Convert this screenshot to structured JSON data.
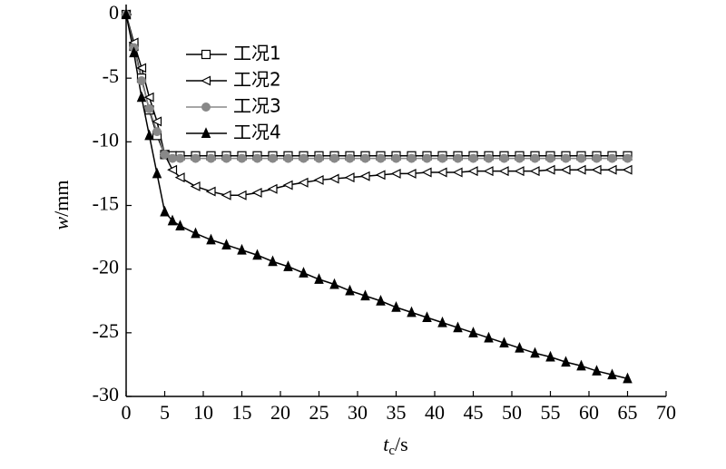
{
  "chart_data": {
    "type": "line",
    "xlabel": {
      "symbol": "t",
      "subscript": "c",
      "unit": "/s"
    },
    "ylabel": {
      "symbol": "w",
      "unit": "/mm"
    },
    "x": [
      0,
      1,
      2,
      3,
      4,
      5,
      6,
      7,
      9,
      11,
      13,
      15,
      17,
      19,
      21,
      23,
      25,
      27,
      29,
      31,
      33,
      35,
      37,
      39,
      41,
      43,
      45,
      47,
      49,
      51,
      53,
      55,
      57,
      59,
      61,
      63,
      65
    ],
    "series": [
      {
        "name": "工况1",
        "color": "#000000",
        "marker": "square",
        "values": [
          0,
          -2.5,
          -5,
          -7.5,
          -9.5,
          -11,
          -11.1,
          -11.1,
          -11.1,
          -11.1,
          -11.1,
          -11.1,
          -11.1,
          -11.1,
          -11.1,
          -11.1,
          -11.1,
          -11.1,
          -11.1,
          -11.1,
          -11.1,
          -11.1,
          -11.1,
          -11.1,
          -11.1,
          -11.1,
          -11.1,
          -11.1,
          -11.1,
          -11.1,
          -11.1,
          -11.1,
          -11.1,
          -11.1,
          -11.1,
          -11.1,
          -11.1
        ]
      },
      {
        "name": "工况2",
        "color": "#000000",
        "marker": "triangle-left",
        "values": [
          0,
          -2.2,
          -4.2,
          -6.5,
          -8.4,
          -11,
          -12.2,
          -12.8,
          -13.5,
          -13.9,
          -14.2,
          -14.2,
          -14.0,
          -13.7,
          -13.4,
          -13.2,
          -13.0,
          -12.9,
          -12.8,
          -12.7,
          -12.6,
          -12.5,
          -12.5,
          -12.4,
          -12.4,
          -12.4,
          -12.3,
          -12.3,
          -12.3,
          -12.3,
          -12.3,
          -12.2,
          -12.2,
          -12.2,
          -12.2,
          -12.2,
          -12.2
        ]
      },
      {
        "name": "工况3",
        "color": "#888888",
        "marker": "circle",
        "values": [
          0,
          -2.6,
          -5.2,
          -7.4,
          -9.2,
          -11,
          -11.3,
          -11.3,
          -11.3,
          -11.3,
          -11.3,
          -11.3,
          -11.3,
          -11.3,
          -11.3,
          -11.3,
          -11.3,
          -11.3,
          -11.3,
          -11.3,
          -11.3,
          -11.3,
          -11.3,
          -11.3,
          -11.3,
          -11.3,
          -11.3,
          -11.3,
          -11.3,
          -11.3,
          -11.3,
          -11.3,
          -11.3,
          -11.3,
          -11.3,
          -11.3,
          -11.3
        ]
      },
      {
        "name": "工况4",
        "color": "#000000",
        "marker": "triangle-up",
        "values": [
          0,
          -3,
          -6.5,
          -9.5,
          -12.5,
          -15.5,
          -16.2,
          -16.6,
          -17.2,
          -17.7,
          -18.1,
          -18.5,
          -18.9,
          -19.4,
          -19.8,
          -20.3,
          -20.8,
          -21.2,
          -21.7,
          -22.1,
          -22.5,
          -23.0,
          -23.4,
          -23.8,
          -24.2,
          -24.6,
          -25.0,
          -25.4,
          -25.8,
          -26.2,
          -26.6,
          -26.9,
          -27.3,
          -27.6,
          -28.0,
          -28.3,
          -28.6
        ]
      }
    ],
    "xlim": [
      0,
      70
    ],
    "xticks": [
      0,
      5,
      10,
      15,
      20,
      25,
      30,
      35,
      40,
      45,
      50,
      55,
      60,
      65,
      70
    ],
    "ylim": [
      -30,
      0
    ],
    "yticks": [
      0,
      -5,
      -10,
      -15,
      -20,
      -25,
      -30
    ],
    "legend": "upper left"
  }
}
